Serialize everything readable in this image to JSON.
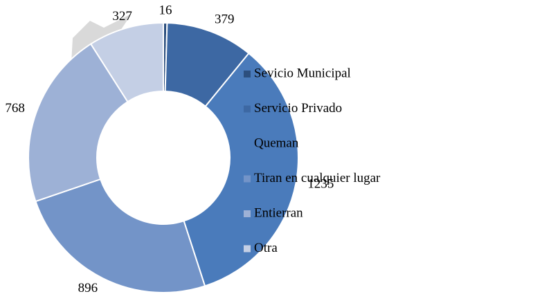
{
  "chart_data": {
    "type": "donut",
    "categories": [
      "Sevicio Municipal",
      "Servicio Privado",
      "Queman",
      "Tiran en cualquier lugar",
      "Entierran",
      "Otra"
    ],
    "values": [
      16,
      379,
      1235,
      896,
      768,
      327
    ],
    "colors": [
      "#2c4f7e",
      "#3d68a3",
      "#4a7bbb",
      "#7394c8",
      "#9db1d6",
      "#c4cfe5"
    ],
    "legend": "right"
  }
}
